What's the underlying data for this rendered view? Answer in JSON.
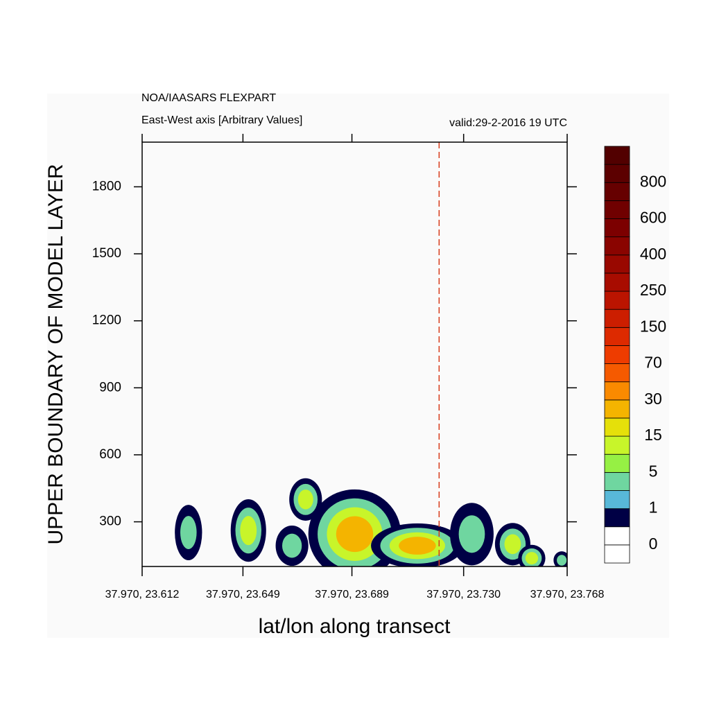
{
  "chart_data": {
    "type": "contour",
    "title": "NOA/IAASARS FLEXPART",
    "subtitle": "East-West axis [Arbitrary Values]",
    "valid_time": "valid:29-2-2016 19 UTC",
    "ylabel": "UPPER BOUNDARY OF MODEL LAYER",
    "xlabel": "lat/lon along transect",
    "xlim": [
      23.612,
      23.768
    ],
    "xticks": [
      {
        "value": 23.612,
        "label": "37.970, 23.612"
      },
      {
        "value": 23.649,
        "label": "37.970, 23.649"
      },
      {
        "value": 23.689,
        "label": "37.970, 23.689"
      },
      {
        "value": 23.73,
        "label": "37.970, 23.730"
      },
      {
        "value": 23.768,
        "label": "37.970, 23.768"
      }
    ],
    "ylim": [
      100,
      2000
    ],
    "yticks": [
      300,
      600,
      900,
      1200,
      1500,
      1800
    ],
    "marker_x": 23.721,
    "marker_color": "#d83a1a",
    "colorbar": {
      "levels": [
        0,
        1,
        5,
        15,
        30,
        70,
        150,
        250,
        400,
        600,
        800
      ],
      "colors": [
        "#ffffff",
        "#ffffff",
        "#000045",
        "#58b8d8",
        "#6fd6a0",
        "#96f044",
        "#c8f52a",
        "#e5e00a",
        "#f4b400",
        "#fa8a00",
        "#f55a00",
        "#ee3c00",
        "#dd2a00",
        "#cc1e00",
        "#bb1400",
        "#a80c00",
        "#990800",
        "#8a0400",
        "#7c0000",
        "#700000",
        "#660000",
        "#5c0000",
        "#520000"
      ]
    },
    "blobs": [
      {
        "x": 23.629,
        "y": 252,
        "dx": 0.005,
        "dy": 124,
        "peak": 3
      },
      {
        "x": 23.651,
        "y": 261,
        "dx": 0.0065,
        "dy": 140,
        "peak": 8
      },
      {
        "x": 23.667,
        "y": 193,
        "dx": 0.006,
        "dy": 90,
        "peak": 5
      },
      {
        "x": 23.672,
        "y": 400,
        "dx": 0.006,
        "dy": 95,
        "peak": 8
      },
      {
        "x": 23.69,
        "y": 245,
        "dx": 0.017,
        "dy": 200,
        "peak": 30
      },
      {
        "x": 23.713,
        "y": 193,
        "dx": 0.017,
        "dy": 100,
        "peak": 30
      },
      {
        "x": 23.733,
        "y": 245,
        "dx": 0.008,
        "dy": 140,
        "peak": 5
      },
      {
        "x": 23.748,
        "y": 200,
        "dx": 0.0065,
        "dy": 95,
        "peak": 8
      },
      {
        "x": 23.755,
        "y": 137,
        "dx": 0.005,
        "dy": 60,
        "peak": 15
      },
      {
        "x": 23.766,
        "y": 128,
        "dx": 0.003,
        "dy": 40,
        "peak": 3
      }
    ]
  }
}
